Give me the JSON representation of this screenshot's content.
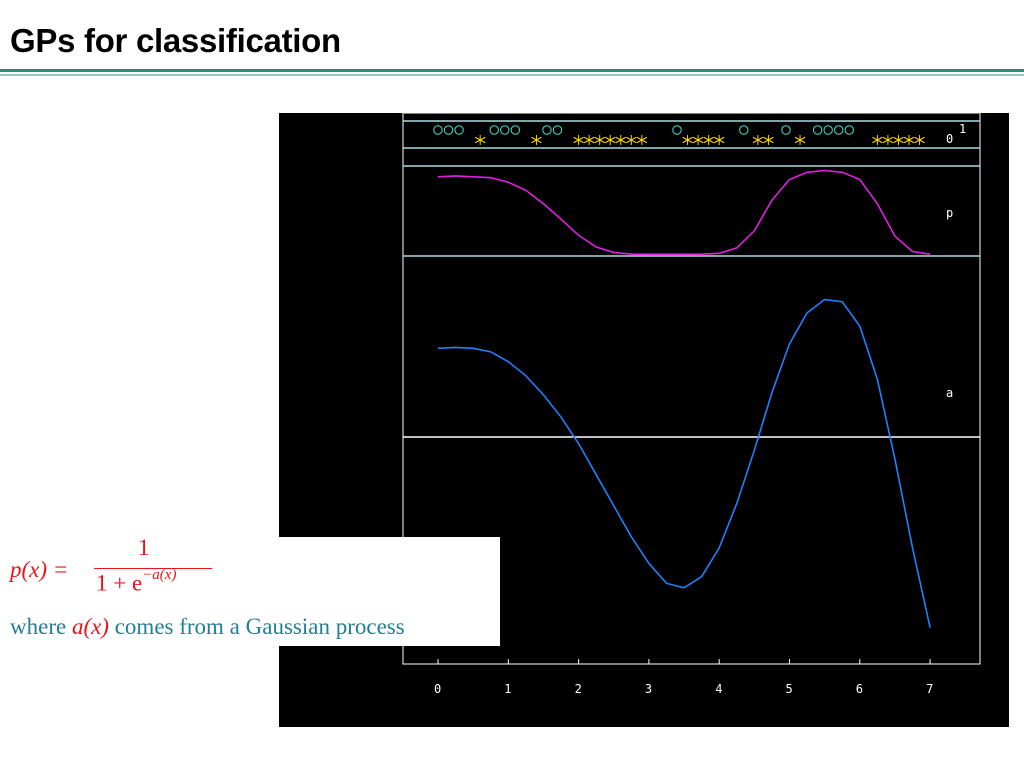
{
  "slide": {
    "title": "GPs for classification"
  },
  "formula": {
    "lhs": "p(x) =",
    "numerator": "1",
    "denominator": "1 + e",
    "exponent": "−a(x)"
  },
  "caption": {
    "before": "where",
    "expr": "a(x)",
    "after": "comes from a Gaussian process"
  },
  "chart_data": [
    {
      "type": "scatter",
      "panel": "class-labels",
      "axis_labels": [
        "1",
        "0"
      ],
      "series": [
        {
          "marker": "circle",
          "color": "#40e0d0",
          "y": 1,
          "x": [
            0.0,
            0.15,
            0.3,
            0.8,
            0.95,
            1.1,
            1.55,
            1.7,
            3.4,
            4.35,
            4.95,
            5.4,
            5.55,
            5.7,
            5.85
          ]
        },
        {
          "marker": "star",
          "color": "#ffd700",
          "y": 0,
          "x": [
            0.6,
            1.4,
            2.0,
            2.15,
            2.3,
            2.45,
            2.6,
            2.75,
            2.9,
            3.55,
            3.7,
            3.85,
            4.0,
            4.55,
            4.7,
            5.15,
            6.25,
            6.4,
            6.55,
            6.7,
            6.85
          ]
        }
      ]
    },
    {
      "type": "line",
      "panel": "p",
      "label": "p",
      "color": "#e020e0",
      "x": [
        0,
        0.25,
        0.5,
        0.75,
        1.0,
        1.25,
        1.5,
        1.75,
        2.0,
        2.25,
        2.5,
        2.75,
        3.0,
        3.25,
        3.5,
        3.75,
        4.0,
        4.25,
        4.5,
        4.75,
        5.0,
        5.25,
        5.5,
        5.75,
        6.0,
        6.25,
        6.5,
        6.75,
        7.0
      ],
      "y": [
        0.88,
        0.89,
        0.88,
        0.87,
        0.82,
        0.73,
        0.58,
        0.41,
        0.23,
        0.1,
        0.04,
        0.02,
        0.02,
        0.02,
        0.02,
        0.02,
        0.03,
        0.09,
        0.28,
        0.62,
        0.85,
        0.93,
        0.95,
        0.93,
        0.85,
        0.58,
        0.22,
        0.05,
        0.02
      ],
      "ylim": [
        0,
        1
      ]
    },
    {
      "type": "line",
      "panel": "a",
      "label": "a",
      "color": "#2080ff",
      "x": [
        0,
        0.25,
        0.5,
        0.75,
        1.0,
        1.25,
        1.5,
        1.75,
        2.0,
        2.25,
        2.5,
        2.75,
        3.0,
        3.25,
        3.5,
        3.75,
        4.0,
        4.25,
        4.5,
        4.75,
        5.0,
        5.25,
        5.5,
        5.75,
        6.0,
        6.25,
        6.5,
        6.75,
        7.0
      ],
      "y": [
        2.0,
        2.02,
        2.0,
        1.92,
        1.7,
        1.38,
        0.95,
        0.45,
        -0.15,
        -0.85,
        -1.55,
        -2.25,
        -2.85,
        -3.3,
        -3.4,
        -3.15,
        -2.5,
        -1.5,
        -0.3,
        1.0,
        2.1,
        2.8,
        3.1,
        3.05,
        2.5,
        1.3,
        -0.5,
        -2.5,
        -4.3
      ],
      "ylim": [
        -5,
        4
      ]
    }
  ],
  "x_axis": {
    "ticks": [
      "0",
      "1",
      "2",
      "3",
      "4",
      "5",
      "6",
      "7"
    ]
  }
}
